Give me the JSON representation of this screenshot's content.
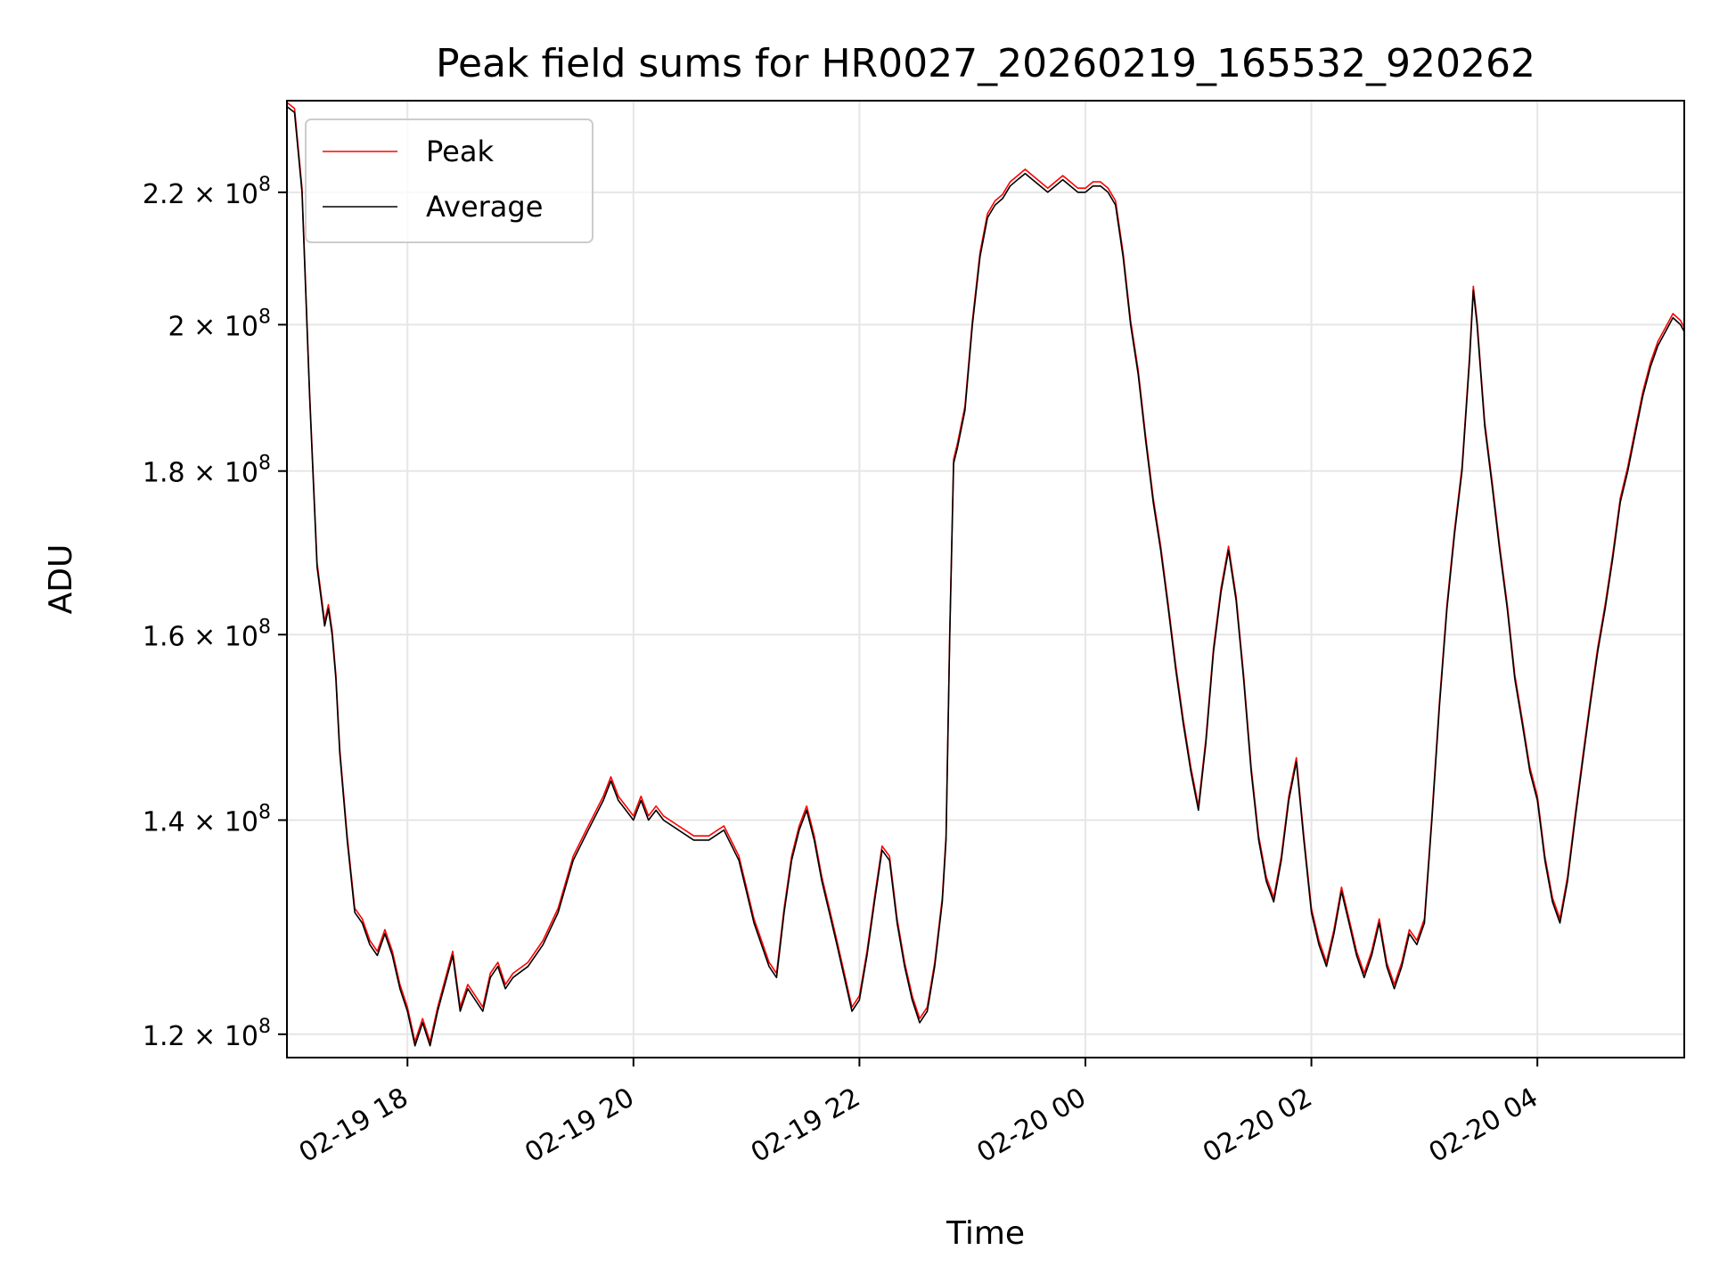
{
  "chart_data": {
    "type": "line",
    "title": "Peak field sums for HR0027_20260219_165532_920262",
    "xlabel": "Time",
    "ylabel": "ADU",
    "yscale": "log",
    "ylim": [
      118000000,
      235000000
    ],
    "xlim_hours": [
      0,
      18.55
    ],
    "x_origin": "2026-02-19 16:55",
    "grid": true,
    "legend_position": "top-left",
    "x_ticks": [
      {
        "hour": 1.6,
        "label": "02-19 18"
      },
      {
        "hour": 4.6,
        "label": "02-19 20"
      },
      {
        "hour": 7.6,
        "label": "02-19 22"
      },
      {
        "hour": 10.6,
        "label": "02-20 00"
      },
      {
        "hour": 13.6,
        "label": "02-20 02"
      },
      {
        "hour": 16.6,
        "label": "02-20 04"
      }
    ],
    "y_ticks": [
      {
        "value": 120000000,
        "mantissa": "1.2",
        "exp": "8"
      },
      {
        "value": 140000000,
        "mantissa": "1.4",
        "exp": "8"
      },
      {
        "value": 160000000,
        "mantissa": "1.6",
        "exp": "8"
      },
      {
        "value": 180000000,
        "mantissa": "1.8",
        "exp": "8"
      },
      {
        "value": 200000000,
        "mantissa": "2",
        "exp": "8"
      },
      {
        "value": 220000000,
        "mantissa": "2.2",
        "exp": "8"
      }
    ],
    "times_symbol": "×",
    "base": "10",
    "series": [
      {
        "name": "Peak",
        "color": "#ff0000",
        "offset": 1.003
      },
      {
        "name": "Average",
        "color": "#000000",
        "offset": 1.0
      }
    ],
    "points": [
      [
        0.0,
        234
      ],
      [
        0.1,
        233
      ],
      [
        0.2,
        220
      ],
      [
        0.3,
        190
      ],
      [
        0.4,
        168
      ],
      [
        0.5,
        161
      ],
      [
        0.55,
        163
      ],
      [
        0.6,
        160
      ],
      [
        0.65,
        155
      ],
      [
        0.7,
        147
      ],
      [
        0.8,
        138
      ],
      [
        0.9,
        131
      ],
      [
        1.0,
        130
      ],
      [
        1.1,
        128
      ],
      [
        1.2,
        127
      ],
      [
        1.3,
        129
      ],
      [
        1.4,
        127
      ],
      [
        1.5,
        124
      ],
      [
        1.6,
        122
      ],
      [
        1.7,
        119
      ],
      [
        1.8,
        121
      ],
      [
        1.9,
        119
      ],
      [
        2.0,
        122
      ],
      [
        2.2,
        127
      ],
      [
        2.3,
        122
      ],
      [
        2.4,
        124
      ],
      [
        2.5,
        123
      ],
      [
        2.6,
        122
      ],
      [
        2.7,
        125
      ],
      [
        2.8,
        126
      ],
      [
        2.9,
        124
      ],
      [
        3.0,
        125
      ],
      [
        3.2,
        126
      ],
      [
        3.4,
        128
      ],
      [
        3.6,
        131
      ],
      [
        3.8,
        136
      ],
      [
        4.0,
        139
      ],
      [
        4.2,
        142
      ],
      [
        4.3,
        144
      ],
      [
        4.4,
        142
      ],
      [
        4.5,
        141
      ],
      [
        4.6,
        140
      ],
      [
        4.7,
        142
      ],
      [
        4.8,
        140
      ],
      [
        4.9,
        141
      ],
      [
        5.0,
        140
      ],
      [
        5.2,
        139
      ],
      [
        5.4,
        138
      ],
      [
        5.6,
        138
      ],
      [
        5.8,
        139
      ],
      [
        6.0,
        136
      ],
      [
        6.1,
        133
      ],
      [
        6.2,
        130
      ],
      [
        6.3,
        128
      ],
      [
        6.4,
        126
      ],
      [
        6.5,
        125
      ],
      [
        6.6,
        131
      ],
      [
        6.7,
        136
      ],
      [
        6.8,
        139
      ],
      [
        6.9,
        141
      ],
      [
        7.0,
        138
      ],
      [
        7.1,
        134
      ],
      [
        7.2,
        131
      ],
      [
        7.3,
        128
      ],
      [
        7.4,
        125
      ],
      [
        7.5,
        122
      ],
      [
        7.6,
        123
      ],
      [
        7.7,
        127
      ],
      [
        7.8,
        132
      ],
      [
        7.9,
        137
      ],
      [
        8.0,
        136
      ],
      [
        8.1,
        130
      ],
      [
        8.2,
        126
      ],
      [
        8.3,
        123
      ],
      [
        8.4,
        121
      ],
      [
        8.5,
        122
      ],
      [
        8.6,
        126
      ],
      [
        8.7,
        132
      ],
      [
        8.75,
        138
      ],
      [
        8.8,
        160
      ],
      [
        8.85,
        181
      ],
      [
        8.9,
        183
      ],
      [
        9.0,
        188
      ],
      [
        9.1,
        200
      ],
      [
        9.2,
        210
      ],
      [
        9.3,
        216
      ],
      [
        9.4,
        218
      ],
      [
        9.5,
        219
      ],
      [
        9.6,
        221
      ],
      [
        9.7,
        222
      ],
      [
        9.8,
        223
      ],
      [
        9.9,
        222
      ],
      [
        10.0,
        221
      ],
      [
        10.1,
        220
      ],
      [
        10.2,
        221
      ],
      [
        10.3,
        222
      ],
      [
        10.4,
        221
      ],
      [
        10.5,
        220
      ],
      [
        10.6,
        220
      ],
      [
        10.7,
        221
      ],
      [
        10.8,
        221
      ],
      [
        10.9,
        220
      ],
      [
        11.0,
        218
      ],
      [
        11.1,
        210
      ],
      [
        11.2,
        200
      ],
      [
        11.3,
        193
      ],
      [
        11.4,
        184
      ],
      [
        11.5,
        176
      ],
      [
        11.6,
        170
      ],
      [
        11.7,
        163
      ],
      [
        11.8,
        156
      ],
      [
        11.9,
        150
      ],
      [
        12.0,
        145
      ],
      [
        12.1,
        141
      ],
      [
        12.2,
        148
      ],
      [
        12.3,
        158
      ],
      [
        12.4,
        165
      ],
      [
        12.5,
        170
      ],
      [
        12.6,
        164
      ],
      [
        12.7,
        155
      ],
      [
        12.8,
        145
      ],
      [
        12.9,
        138
      ],
      [
        13.0,
        134
      ],
      [
        13.1,
        132
      ],
      [
        13.2,
        136
      ],
      [
        13.3,
        142
      ],
      [
        13.4,
        146
      ],
      [
        13.5,
        138
      ],
      [
        13.6,
        131
      ],
      [
        13.7,
        128
      ],
      [
        13.8,
        126
      ],
      [
        13.9,
        129
      ],
      [
        14.0,
        133
      ],
      [
        14.1,
        130
      ],
      [
        14.2,
        127
      ],
      [
        14.3,
        125
      ],
      [
        14.4,
        127
      ],
      [
        14.5,
        130
      ],
      [
        14.6,
        126
      ],
      [
        14.7,
        124
      ],
      [
        14.8,
        126
      ],
      [
        14.9,
        129
      ],
      [
        15.0,
        128
      ],
      [
        15.1,
        130
      ],
      [
        15.2,
        140
      ],
      [
        15.3,
        152
      ],
      [
        15.4,
        163
      ],
      [
        15.5,
        172
      ],
      [
        15.6,
        180
      ],
      [
        15.7,
        195
      ],
      [
        15.75,
        205
      ],
      [
        15.8,
        200
      ],
      [
        15.9,
        186
      ],
      [
        16.0,
        178
      ],
      [
        16.1,
        170
      ],
      [
        16.2,
        163
      ],
      [
        16.3,
        155
      ],
      [
        16.4,
        150
      ],
      [
        16.5,
        145
      ],
      [
        16.6,
        142
      ],
      [
        16.7,
        136
      ],
      [
        16.8,
        132
      ],
      [
        16.9,
        130
      ],
      [
        17.0,
        134
      ],
      [
        17.1,
        140
      ],
      [
        17.2,
        146
      ],
      [
        17.3,
        152
      ],
      [
        17.4,
        158
      ],
      [
        17.5,
        163
      ],
      [
        17.6,
        169
      ],
      [
        17.7,
        176
      ],
      [
        17.8,
        180
      ],
      [
        17.9,
        185
      ],
      [
        18.0,
        190
      ],
      [
        18.1,
        194
      ],
      [
        18.2,
        197
      ],
      [
        18.3,
        199
      ],
      [
        18.4,
        201
      ],
      [
        18.5,
        200
      ],
      [
        18.55,
        199
      ]
    ]
  },
  "legend": {
    "items": [
      {
        "label": "Peak",
        "color": "#ff0000"
      },
      {
        "label": "Average",
        "color": "#000000"
      }
    ]
  }
}
